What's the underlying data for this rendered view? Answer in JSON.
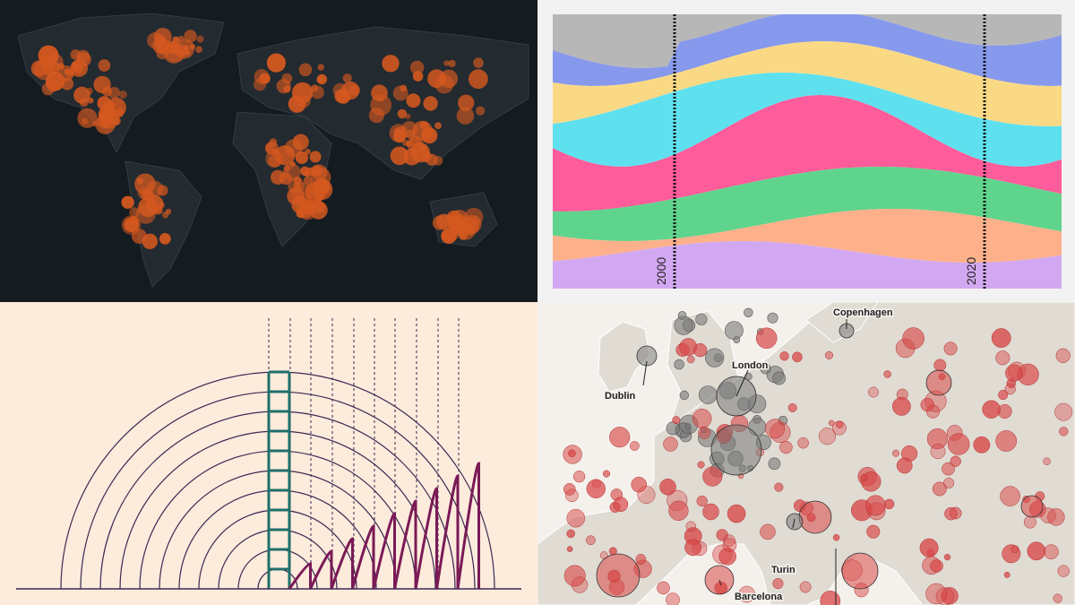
{
  "panels": {
    "world_map": {
      "colors": {
        "background": "#141b21",
        "land": "#232a30",
        "hotspot": "#d4581f"
      }
    },
    "streamgraph": {
      "year_labels": [
        "2000",
        "2020"
      ],
      "colors": [
        "#b7b7b7",
        "#8799ec",
        "#fad985",
        "#5fe0ef",
        "#fe5c9a",
        "#5fd48c",
        "#fdb08a",
        "#d3a8f2"
      ]
    },
    "arc_diagram": {
      "colors": {
        "background": "#fdebdc",
        "arcs": "#3a2a52",
        "ladder": "#1f6f6a",
        "humps": "#7a1a56"
      }
    },
    "europe_map": {
      "cities": [
        "Copenhagen",
        "London",
        "Dublin",
        "Turin",
        "Barcelona"
      ],
      "colors": {
        "background": "#f4f1ec",
        "grey_bubble": "#7a7a7a",
        "red_bubble": "#d84848"
      }
    }
  }
}
